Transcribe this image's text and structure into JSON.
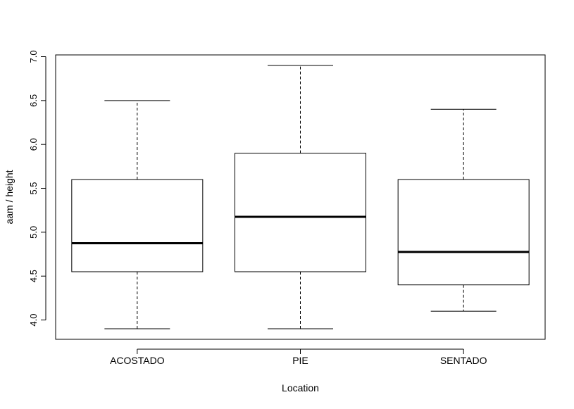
{
  "chart_data": {
    "type": "boxplot",
    "title": "",
    "xlabel": "Location",
    "ylabel": "aam / height",
    "ylim": [
      3.78,
      7.02
    ],
    "yticks": [
      "4.0",
      "4.5",
      "5.0",
      "5.5",
      "6.0",
      "6.5",
      "7.0"
    ],
    "grid": false,
    "legend": "none",
    "categories": [
      "ACOSTADO",
      "PIE",
      "SENTADO"
    ],
    "boxes": [
      {
        "category": "ACOSTADO",
        "whisker_low": 3.9,
        "q1": 4.55,
        "median": 4.875,
        "q3": 5.6,
        "whisker_high": 6.5
      },
      {
        "category": "PIE",
        "whisker_low": 3.9,
        "q1": 4.55,
        "median": 5.175,
        "q3": 5.9,
        "whisker_high": 6.9
      },
      {
        "category": "SENTADO",
        "whisker_low": 4.1,
        "q1": 4.4,
        "median": 4.775,
        "q3": 5.6,
        "whisker_high": 6.4
      }
    ],
    "colors": {
      "box_fill": "#ffffff",
      "stroke": "#000000"
    }
  }
}
